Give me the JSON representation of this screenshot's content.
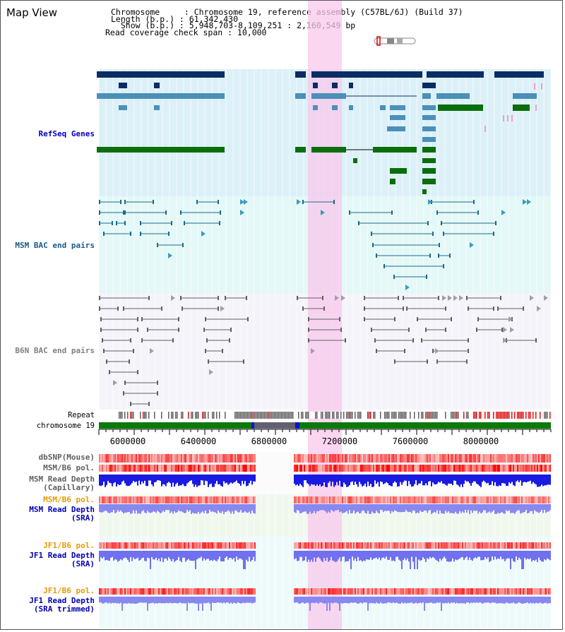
{
  "view": {
    "title": "Map View"
  },
  "header": {
    "chromosome": "Chromosome     : Chromosome 19, reference assembly (C57BL/6J) (Build 37)",
    "length": "Length (b.p.) : 61,342,430",
    "show": "  Show (b.p.) : 5,948,703-8,109,251 : 2,160,549 bp",
    "coverage": "Read coverage check span : 10,000"
  },
  "tracks": {
    "refseq": "RefSeq Genes",
    "msm_bac": "MSM BAC end pairs",
    "b6n_bac": "B6N BAC end pairs",
    "repeat": "Repeat",
    "chromosome": "chromosome 19",
    "dbsnp": "dbSNP(Mouse)",
    "msm_b6_pol": "MSM/B6 pol.",
    "msm_depth_cap_1": "MSM Read Depth",
    "msm_depth_cap_2": "(Capillary)",
    "msm_b6_pol_2": "MSM/B6 pol.",
    "msm_depth_sra_1": "MSM Read Depth",
    "msm_depth_sra_2": "(SRA)",
    "jf1_pol_1": "JF1/B6 pol.",
    "jf1_depth_sra_1": "JF1 Read Depth",
    "jf1_depth_sra_2": "(SRA)",
    "jf1_pol_2": "JF1/B6 pol.",
    "jf1_depth_trim_1": "JF1 Read Depth",
    "jf1_depth_trim_2": "(SRA trimmed)"
  },
  "axis": {
    "ticks": [
      "6000000",
      "6400000",
      "6800000",
      "7200000",
      "7600000",
      "8000000"
    ]
  },
  "colors": {
    "refseq_bg": "#dcf0f8",
    "msm_bg": "#e4f8f8",
    "b6n_bg": "#f4f4fa",
    "highlight": "#f8c8ec",
    "gene_dark": "#0c2c64",
    "gene_mid": "#4a90b8",
    "gene_green": "#0a6e0a",
    "msm_line": "#1a6a8a",
    "b6n_line": "#606060",
    "msm_label": "#1a5a8a",
    "b6n_label": "#808080",
    "orange_label": "#e89a00",
    "blue_label": "#0000b0"
  }
}
